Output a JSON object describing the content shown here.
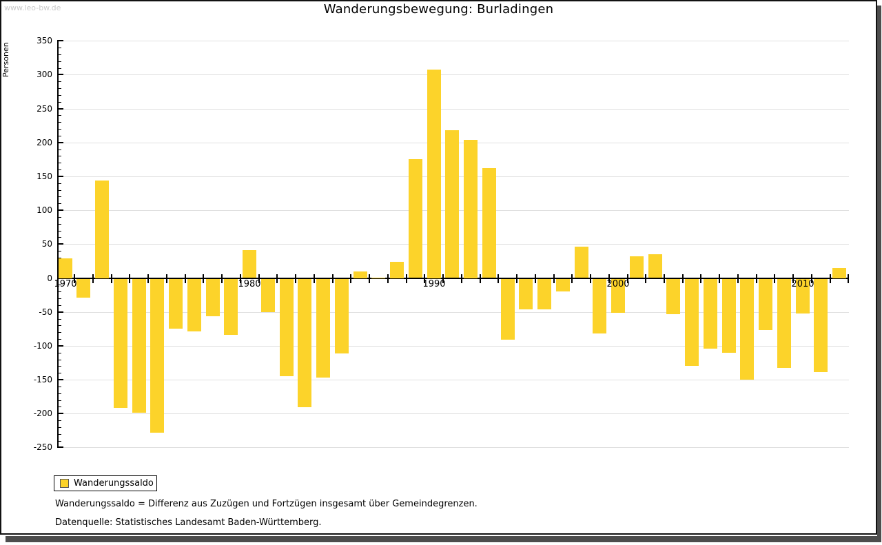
{
  "watermark": "www.leo-bw.de",
  "header": {
    "title": "Wanderungsbewegung: Burladingen"
  },
  "legend": {
    "label": "Wanderungssaldo"
  },
  "footnotes": [
    "Wanderungssaldo = Differenz aus Zuzügen und Fortzügen insgesamt über Gemeindegrenzen.",
    "Datenquelle: Statistisches Landesamt Baden-Württemberg."
  ],
  "colors": {
    "bar": "#fcd32a",
    "grid": "#e0e0e0",
    "axis": "#000000",
    "watermark": "#c9c9c9",
    "window_shadow": "#4d4d4d"
  },
  "chart_data": {
    "type": "bar",
    "title": "Wanderungsbewegung: Burladingen",
    "xlabel": "",
    "ylabel": "Personen",
    "x": [
      1970,
      1971,
      1972,
      1973,
      1974,
      1975,
      1976,
      1977,
      1978,
      1979,
      1980,
      1981,
      1982,
      1983,
      1984,
      1985,
      1986,
      1987,
      1988,
      1989,
      1990,
      1991,
      1992,
      1993,
      1994,
      1995,
      1996,
      1997,
      1998,
      1999,
      2000,
      2001,
      2002,
      2003,
      2004,
      2005,
      2006,
      2007,
      2008,
      2009,
      2010,
      2011,
      2012
    ],
    "series": [
      {
        "name": "Wanderungssaldo",
        "values": [
          29,
          -27,
          144,
          -190,
          -197,
          -227,
          -73,
          -77,
          -55,
          -82,
          41,
          -49,
          -143,
          -189,
          -145,
          -110,
          10,
          1,
          24,
          175,
          308,
          218,
          204,
          162,
          -89,
          -45,
          -45,
          -18,
          46,
          -80,
          -50,
          32,
          35,
          -52,
          -128,
          -103,
          -109,
          -148,
          -75,
          -131,
          -51,
          -137,
          15
        ]
      }
    ],
    "ylim": [
      -250,
      350
    ],
    "ytick_step": 50,
    "y_minor_step": 10,
    "x_major_labels": [
      1970,
      1980,
      1990,
      2000,
      2010
    ],
    "grid": true,
    "legend_position": "bottom-left"
  }
}
